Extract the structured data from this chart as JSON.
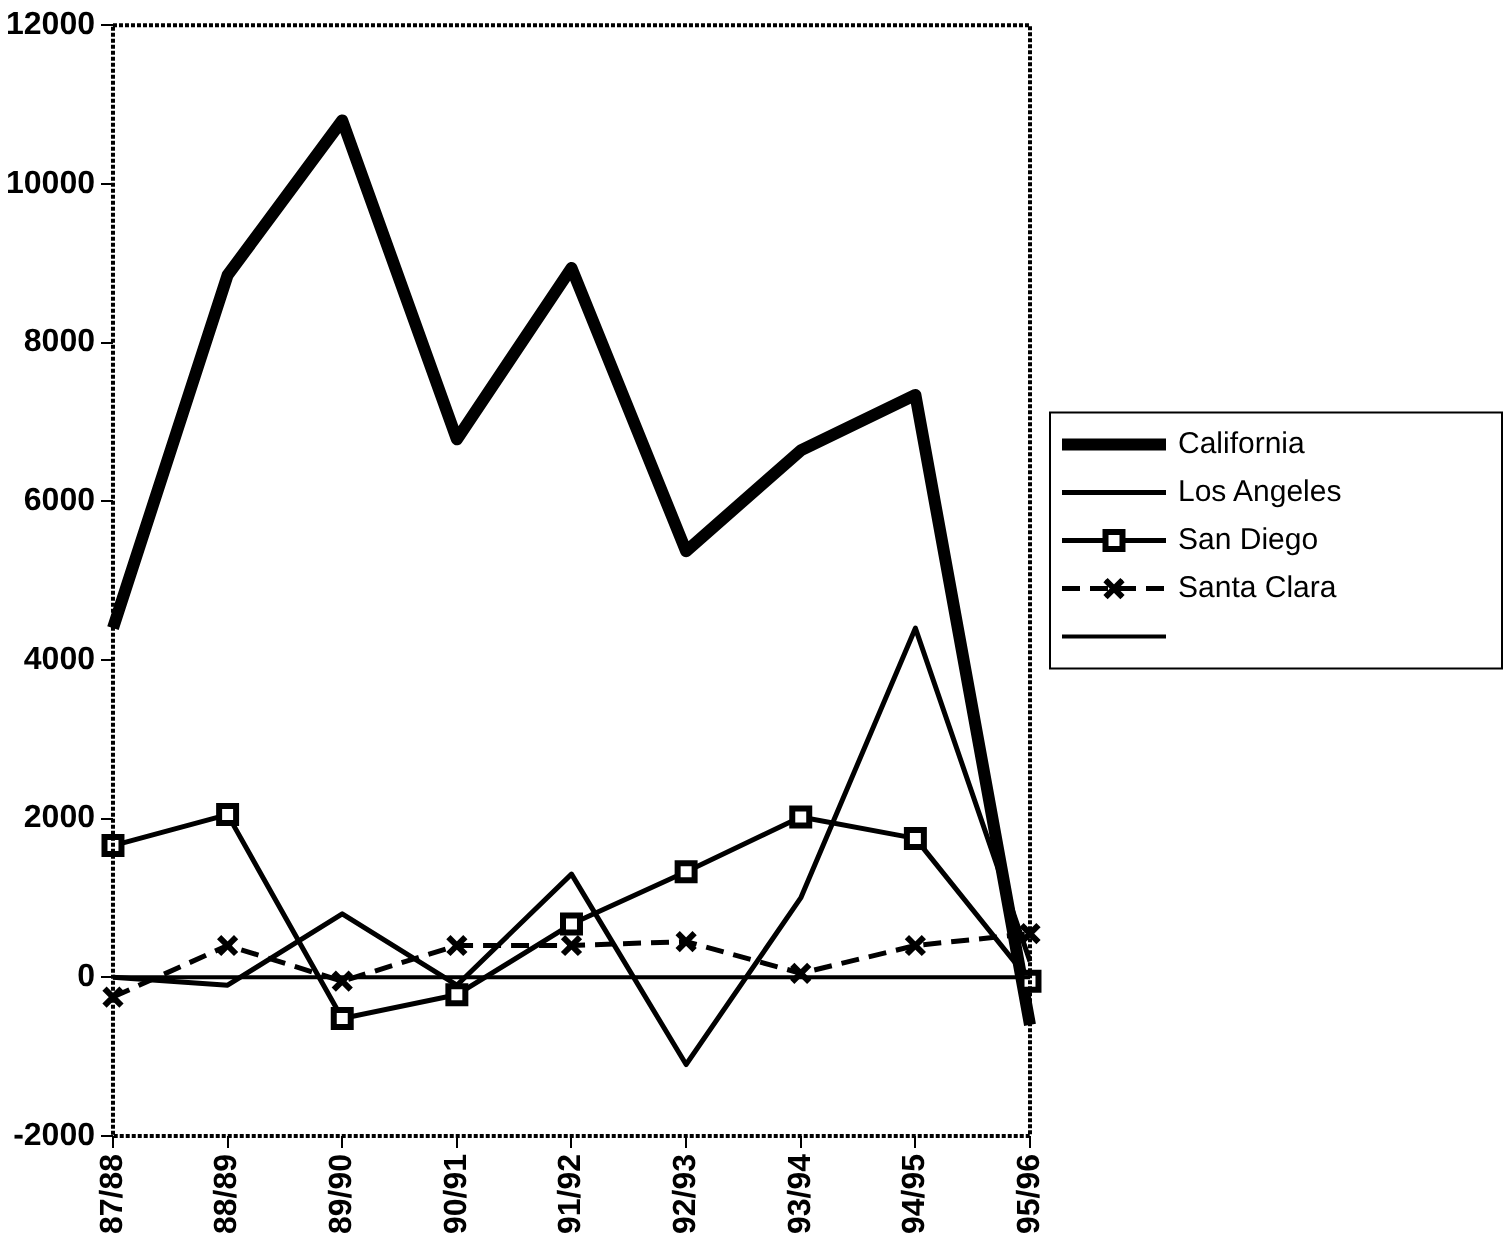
{
  "chart_data": {
    "type": "line",
    "categories": [
      "87/88",
      "88/89",
      "89/90",
      "90/91",
      "91/92",
      "92/93",
      "93/94",
      "94/95",
      "95/96"
    ],
    "series": [
      {
        "name": "California",
        "color": "#000000",
        "values": [
          4400,
          8850,
          10800,
          6780,
          8940,
          5370,
          6640,
          7340,
          -600
        ]
      },
      {
        "name": "Los Angeles",
        "color": "#000000",
        "values": [
          0,
          -100,
          800,
          -100,
          1300,
          -1100,
          1000,
          4400,
          200
        ]
      },
      {
        "name": "San Diego",
        "color": "#000000",
        "marker": "square",
        "values": [
          1660,
          2050,
          -520,
          -220,
          670,
          1330,
          2020,
          1750,
          -50
        ]
      },
      {
        "name": "Santa Clara",
        "color": "#000000",
        "marker": "cross",
        "line_style": "dashed",
        "values": [
          -250,
          400,
          -50,
          400,
          400,
          450,
          50,
          400,
          550
        ]
      },
      {
        "color": "#000000",
        "values": [
          0,
          0,
          0,
          0,
          0,
          0,
          0,
          0,
          0
        ]
      }
    ],
    "ylim": [
      -2000,
      12000
    ],
    "yticks": [
      -2000,
      0,
      2000,
      4000,
      6000,
      8000,
      10000,
      12000
    ],
    "grid": false,
    "legend": "right",
    "marker": "none",
    "line_style": "solid"
  }
}
